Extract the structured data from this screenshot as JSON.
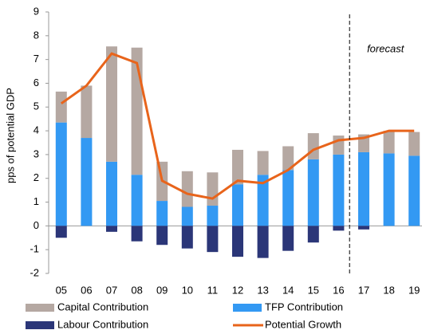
{
  "chart_data": {
    "type": "bar",
    "y_label": "pps of potential GDP",
    "categories": [
      "05",
      "06",
      "07",
      "08",
      "09",
      "10",
      "11",
      "12",
      "13",
      "14",
      "15",
      "16",
      "17",
      "18",
      "19"
    ],
    "series": [
      {
        "name": "TFP Contribution",
        "type": "bar",
        "color": "#3399f3",
        "values": [
          4.35,
          3.7,
          2.7,
          2.15,
          1.05,
          0.8,
          0.85,
          1.75,
          2.15,
          2.35,
          2.8,
          3.0,
          3.1,
          3.05,
          2.95
        ]
      },
      {
        "name": "Capital Contribution",
        "type": "bar",
        "color": "#b5a8a2",
        "values": [
          1.3,
          2.2,
          4.85,
          5.35,
          1.65,
          1.5,
          1.4,
          1.45,
          1.0,
          1.0,
          1.1,
          0.8,
          0.75,
          0.95,
          1.0
        ]
      },
      {
        "name": "Labour Contribution",
        "type": "bar",
        "color": "#2b3678",
        "values": [
          -0.5,
          0,
          -0.25,
          -0.65,
          -0.8,
          -0.95,
          -1.1,
          -1.3,
          -1.35,
          -1.05,
          -0.7,
          -0.2,
          -0.15,
          0,
          0
        ]
      },
      {
        "name": "Potential Growth",
        "type": "line",
        "color": "#e8641b",
        "values": [
          5.15,
          5.9,
          7.25,
          6.85,
          1.9,
          1.35,
          1.15,
          1.9,
          1.8,
          2.35,
          3.2,
          3.6,
          3.7,
          4.0,
          4.0
        ]
      }
    ],
    "annotation": "forecast",
    "ylim": [
      -2,
      9
    ],
    "yticks": [
      -2,
      -1,
      0,
      1,
      2,
      3,
      4,
      5,
      6,
      7,
      8,
      9
    ],
    "grid": false
  }
}
